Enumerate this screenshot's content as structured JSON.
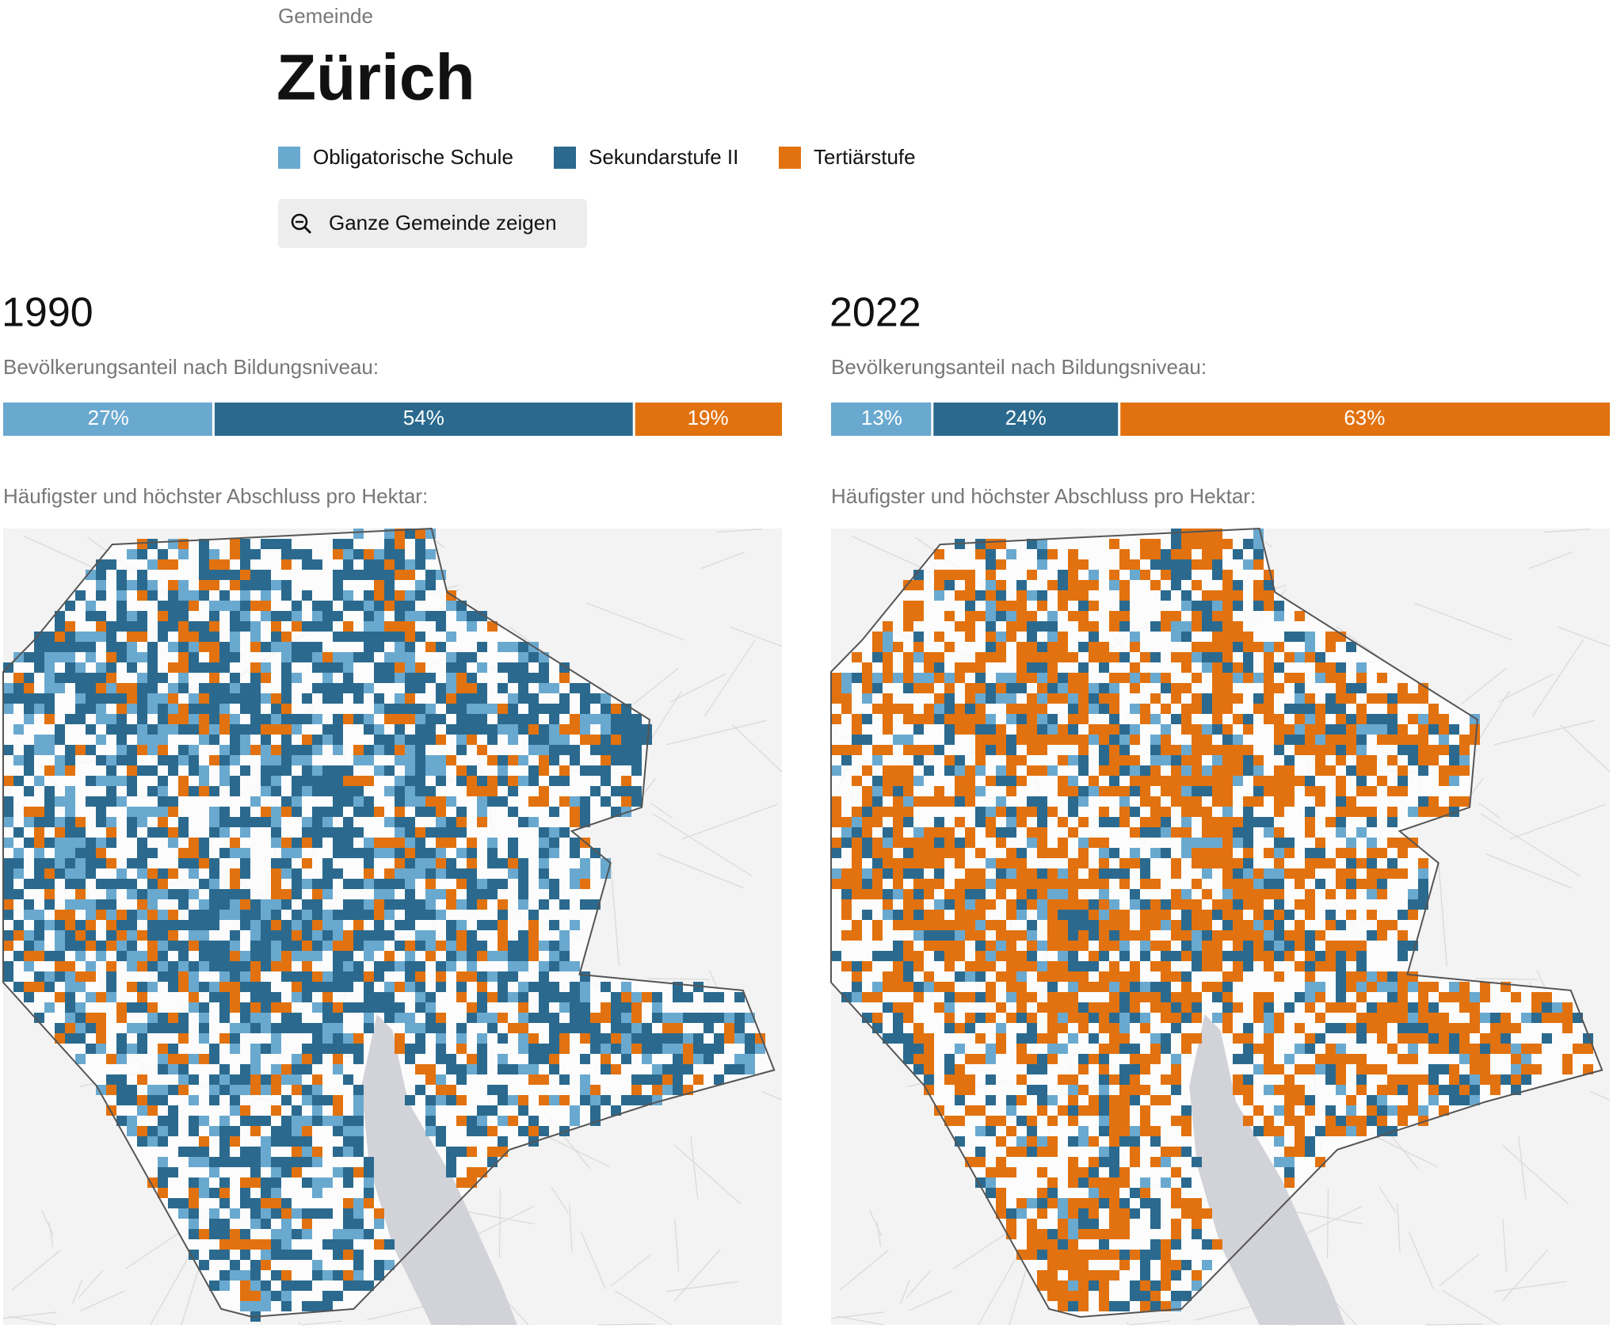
{
  "header": {
    "kicker": "Gemeinde",
    "title": "Zürich"
  },
  "legend": [
    {
      "name": "Obligatorische Schule",
      "color": "#6aa9cf"
    },
    {
      "name": "Sekundarstufe II",
      "color": "#2b6a8e"
    },
    {
      "name": "Tertiärstufe",
      "color": "#e2720f"
    }
  ],
  "button": "Ganze Gemeinde zeigen",
  "chart_data": [
    {
      "type": "stacked-bar",
      "title": "1990",
      "subtitle": "Bevölkerungsanteil nach Bildungsniveau:",
      "series": [
        {
          "color": "#6aa9cf",
          "values": [
            27
          ],
          "value_labels": [
            "27%"
          ]
        },
        {
          "color": "#2b6a8e",
          "values": [
            54
          ],
          "value_labels": [
            "54%"
          ]
        },
        {
          "color": "#e2720f",
          "values": [
            19
          ],
          "value_labels": [
            "19%"
          ]
        }
      ]
    },
    {
      "type": "stacked-bar",
      "title": "2022",
      "subtitle": "Bevölkerungsanteil nach Bildungsniveau:",
      "series": [
        {
          "color": "#6aa9cf",
          "values": [
            13
          ],
          "value_labels": [
            "13%"
          ]
        },
        {
          "color": "#2b6a8e",
          "values": [
            24
          ],
          "value_labels": [
            "24%"
          ]
        },
        {
          "color": "#e2720f",
          "values": [
            63
          ],
          "value_labels": [
            "63%"
          ]
        }
      ]
    }
  ],
  "maps": [
    {
      "caption": "Häufigster und höchster Abschluss pro Hektar:"
    },
    {
      "caption": "Häufigster und höchster Abschluss pro Hektar:"
    }
  ]
}
